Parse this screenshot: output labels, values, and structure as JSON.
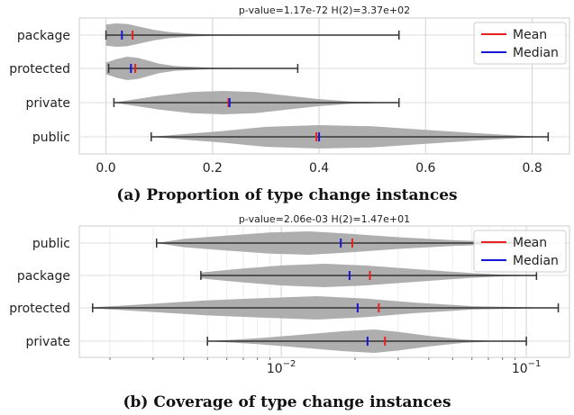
{
  "chart_data": [
    {
      "type": "violin",
      "title": "p-value=1.17e-72  H(2)=3.37e+02",
      "caption": "(a) Proportion of type change instances",
      "xscale": "linear",
      "xlim": [
        -0.05,
        0.87
      ],
      "xticks": [
        0.0,
        0.2,
        0.4,
        0.6,
        0.8
      ],
      "xtick_labels": [
        "0.0",
        "0.2",
        "0.4",
        "0.6",
        "0.8"
      ],
      "grid": true,
      "legend": {
        "position": "top-right",
        "entries": [
          "Mean",
          "Median"
        ]
      },
      "colors": {
        "violin": "#aaaaaa",
        "whisker": "#333333",
        "mean": "#e8211d",
        "median": "#1616d6"
      },
      "categories": [
        {
          "label": "package",
          "min": 0.0,
          "max": 0.55,
          "mean": 0.05,
          "median": 0.03,
          "density": [
            [
              0.0,
              0.9
            ],
            [
              0.02,
              1.0
            ],
            [
              0.04,
              0.95
            ],
            [
              0.06,
              0.75
            ],
            [
              0.09,
              0.45
            ],
            [
              0.12,
              0.25
            ],
            [
              0.16,
              0.12
            ],
            [
              0.2,
              0.06
            ],
            [
              0.3,
              0.03
            ],
            [
              0.55,
              0.0
            ]
          ]
        },
        {
          "label": "protected",
          "min": 0.005,
          "max": 0.36,
          "mean": 0.055,
          "median": 0.047,
          "density": [
            [
              0.0,
              0.5
            ],
            [
              0.02,
              0.8
            ],
            [
              0.04,
              1.0
            ],
            [
              0.06,
              0.9
            ],
            [
              0.08,
              0.65
            ],
            [
              0.1,
              0.4
            ],
            [
              0.13,
              0.2
            ],
            [
              0.2,
              0.06
            ],
            [
              0.36,
              0.0
            ]
          ]
        },
        {
          "label": "private",
          "min": 0.015,
          "max": 0.55,
          "mean": 0.23,
          "median": 0.232,
          "density": [
            [
              0.015,
              0.0
            ],
            [
              0.05,
              0.25
            ],
            [
              0.1,
              0.6
            ],
            [
              0.16,
              0.9
            ],
            [
              0.22,
              1.0
            ],
            [
              0.28,
              0.9
            ],
            [
              0.34,
              0.6
            ],
            [
              0.4,
              0.3
            ],
            [
              0.46,
              0.1
            ],
            [
              0.55,
              0.0
            ]
          ]
        },
        {
          "label": "public",
          "min": 0.085,
          "max": 0.83,
          "mean": 0.395,
          "median": 0.4,
          "density": [
            [
              0.085,
              0.0
            ],
            [
              0.15,
              0.25
            ],
            [
              0.22,
              0.5
            ],
            [
              0.3,
              0.85
            ],
            [
              0.4,
              1.0
            ],
            [
              0.5,
              0.9
            ],
            [
              0.6,
              0.6
            ],
            [
              0.7,
              0.3
            ],
            [
              0.78,
              0.1
            ],
            [
              0.83,
              0.0
            ]
          ]
        }
      ]
    },
    {
      "type": "violin",
      "title": "p-value=2.06e-03  H(2)=1.47e+01",
      "caption": "(b) Coverage of type change instances",
      "xscale": "log",
      "xlim": [
        0.0015,
        0.15
      ],
      "xticks": [
        0.01,
        0.1
      ],
      "xtick_labels": [
        "10^-2",
        "10^-1"
      ],
      "grid": true,
      "legend": {
        "position": "top-right",
        "entries": [
          "Mean",
          "Median"
        ]
      },
      "colors": {
        "violin": "#aaaaaa",
        "whisker": "#333333",
        "mean": "#e8211d",
        "median": "#1616d6"
      },
      "categories": [
        {
          "label": "public",
          "min": 0.0031,
          "max": 0.105,
          "mean": 0.0195,
          "median": 0.0175,
          "density": [
            [
              0.0031,
              0.0
            ],
            [
              0.004,
              0.35
            ],
            [
              0.006,
              0.65
            ],
            [
              0.009,
              0.9
            ],
            [
              0.013,
              1.0
            ],
            [
              0.019,
              0.8
            ],
            [
              0.03,
              0.5
            ],
            [
              0.05,
              0.25
            ],
            [
              0.08,
              0.1
            ],
            [
              0.105,
              0.0
            ]
          ]
        },
        {
          "label": "package",
          "min": 0.0047,
          "max": 0.11,
          "mean": 0.023,
          "median": 0.019,
          "density": [
            [
              0.0047,
              0.25
            ],
            [
              0.007,
              0.6
            ],
            [
              0.01,
              0.85
            ],
            [
              0.015,
              1.0
            ],
            [
              0.022,
              0.85
            ],
            [
              0.035,
              0.55
            ],
            [
              0.06,
              0.2
            ],
            [
              0.08,
              0.08
            ],
            [
              0.11,
              0.0
            ]
          ]
        },
        {
          "label": "protected",
          "min": 0.0017,
          "max": 0.135,
          "mean": 0.025,
          "median": 0.0205,
          "density": [
            [
              0.0017,
              0.05
            ],
            [
              0.003,
              0.35
            ],
            [
              0.005,
              0.65
            ],
            [
              0.009,
              0.85
            ],
            [
              0.014,
              1.0
            ],
            [
              0.022,
              0.8
            ],
            [
              0.035,
              0.45
            ],
            [
              0.06,
              0.15
            ],
            [
              0.135,
              0.0
            ]
          ]
        },
        {
          "label": "private",
          "min": 0.005,
          "max": 0.1,
          "mean": 0.0265,
          "median": 0.0225,
          "density": [
            [
              0.005,
              0.0
            ],
            [
              0.008,
              0.25
            ],
            [
              0.012,
              0.55
            ],
            [
              0.018,
              0.85
            ],
            [
              0.024,
              1.0
            ],
            [
              0.03,
              0.8
            ],
            [
              0.04,
              0.45
            ],
            [
              0.055,
              0.15
            ],
            [
              0.07,
              0.04
            ],
            [
              0.1,
              0.0
            ]
          ]
        }
      ]
    }
  ]
}
